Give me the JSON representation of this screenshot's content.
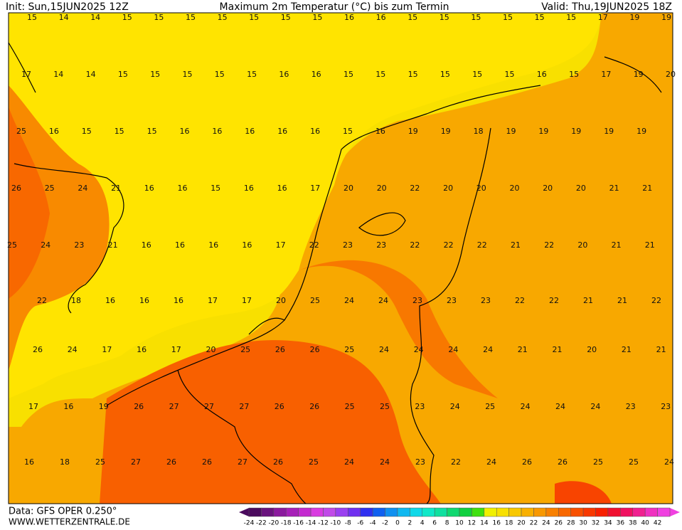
{
  "header": {
    "init": "Init: Sun,15JUN2025 12Z",
    "title": "Maximum 2m Temperatur (°C) bis zum Termin",
    "valid": "Valid: Thu,19JUN2025 18Z"
  },
  "footer": {
    "data": "Data: GFS OPER 0.250°",
    "site": "WWW.WETTERZENTRALE.DE"
  },
  "grid": {
    "rows": [
      [
        15,
        14,
        14,
        15,
        15,
        15,
        15,
        15,
        15,
        15,
        16,
        16,
        15,
        15,
        15,
        15,
        15,
        15,
        17,
        19,
        19
      ],
      [
        17,
        14,
        14,
        15,
        15,
        15,
        15,
        15,
        16,
        16,
        15,
        15,
        15,
        15,
        15,
        15,
        16,
        15,
        17,
        19,
        20
      ],
      [
        25,
        16,
        15,
        15,
        15,
        16,
        16,
        16,
        16,
        16,
        15,
        16,
        19,
        19,
        18,
        19,
        19,
        19,
        19,
        19
      ],
      [
        26,
        25,
        24,
        21,
        16,
        16,
        15,
        16,
        16,
        17,
        20,
        20,
        22,
        20,
        20,
        20,
        20,
        20,
        21,
        21
      ],
      [
        25,
        24,
        23,
        21,
        16,
        16,
        16,
        16,
        17,
        22,
        23,
        23,
        22,
        22,
        22,
        21,
        22,
        20,
        21,
        21
      ],
      [
        22,
        18,
        16,
        16,
        16,
        17,
        17,
        20,
        25,
        24,
        24,
        23,
        23,
        23,
        22,
        22,
        21,
        21,
        22
      ],
      [
        26,
        24,
        17,
        16,
        17,
        20,
        25,
        26,
        26,
        25,
        24,
        24,
        24,
        24,
        21,
        21,
        20,
        21,
        21
      ],
      [
        17,
        16,
        19,
        26,
        27,
        27,
        27,
        26,
        26,
        25,
        25,
        23,
        24,
        25,
        24,
        24,
        24,
        23,
        23
      ],
      [
        16,
        18,
        25,
        27,
        26,
        26,
        27,
        26,
        25,
        24,
        24,
        23,
        22,
        24,
        26,
        26,
        25,
        25,
        24
      ]
    ]
  },
  "legend": {
    "labels": [
      -24,
      -22,
      -20,
      -18,
      -16,
      -14,
      -12,
      -10,
      -8,
      -6,
      -4,
      -2,
      0,
      2,
      4,
      6,
      8,
      10,
      12,
      14,
      16,
      18,
      20,
      22,
      24,
      26,
      28,
      30,
      32,
      34,
      36,
      38,
      40,
      42
    ],
    "colors": [
      "#4b0a5e",
      "#6a137e",
      "#8b1a9e",
      "#a720b8",
      "#c42ad0",
      "#d93be0",
      "#c04ae8",
      "#9a40f0",
      "#7030f0",
      "#3030f0",
      "#1060f0",
      "#1090f0",
      "#10b8f0",
      "#10d8e8",
      "#10e8c8",
      "#10e0a0",
      "#10d870",
      "#10d040",
      "#40e010",
      "#f0f000",
      "#f8e000",
      "#f8c800",
      "#f8b000",
      "#f89800",
      "#f88000",
      "#f86800",
      "#f85000",
      "#f83800",
      "#f82000",
      "#f01030",
      "#f01060",
      "#f02090",
      "#f030c0",
      "#f040e0"
    ]
  }
}
